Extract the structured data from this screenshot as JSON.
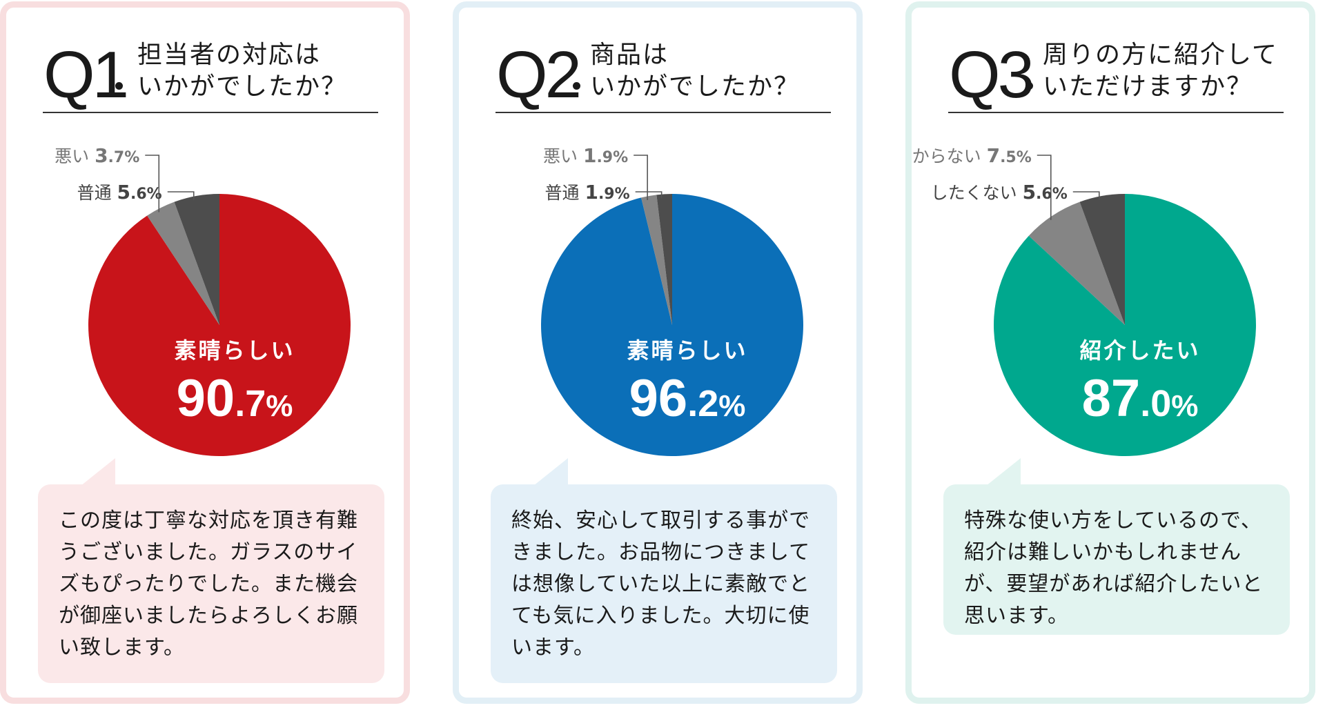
{
  "chart_data": [
    {
      "type": "pie",
      "question_number": "Q1",
      "question": "担当者の対応は\nいかがでしたか？",
      "slices": [
        {
          "label": "素晴らしい",
          "value": 90.7,
          "color": "#c8141a"
        },
        {
          "label": "普通",
          "value": 5.6,
          "color": "#4d4d4d"
        },
        {
          "label": "悪い",
          "value": 3.7,
          "color": "#858585"
        }
      ],
      "comment": "この度は丁寧な対応を頂き有難うございました。ガラスのサイズもぴったりでした。また機会が御座いましたらよろしくお願い致します。",
      "theme": {
        "border": "#f8dedf",
        "bubble": "#fbe8e9"
      }
    },
    {
      "type": "pie",
      "question_number": "Q2",
      "question": "商品は\nいかがでしたか？",
      "slices": [
        {
          "label": "素晴らしい",
          "value": 96.2,
          "color": "#0b6fb8"
        },
        {
          "label": "普通",
          "value": 1.9,
          "color": "#4d4d4d"
        },
        {
          "label": "悪い",
          "value": 1.9,
          "color": "#858585"
        }
      ],
      "comment": "終始、安心して取引する事ができました。お品物につきましては想像していた以上に素敵でとても気に入りました。大切に使います。",
      "theme": {
        "border": "#e2eff6",
        "bubble": "#e4f0f8"
      }
    },
    {
      "type": "pie",
      "question_number": "Q3",
      "question": "周りの方に紹介して\nいただけますか？",
      "slices": [
        {
          "label": "紹介したい",
          "value": 87.0,
          "color": "#00a88e"
        },
        {
          "label": "したくない",
          "value": 5.6,
          "color": "#4d4d4d"
        },
        {
          "label": "分からない",
          "value": 7.5,
          "color": "#858585"
        }
      ],
      "comment": "特殊な使い方をしているので、紹介は難しいかもしれませんが、要望があれば紹介したいと思います。",
      "theme": {
        "border": "#dff2ee",
        "bubble": "#e2f4f0"
      }
    }
  ]
}
